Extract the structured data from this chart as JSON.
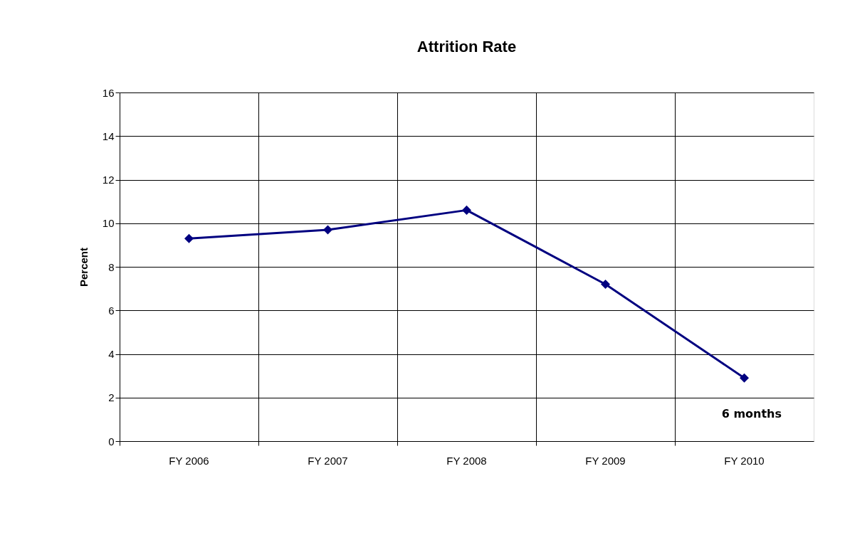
{
  "chart_data": {
    "type": "line",
    "title": "Attrition Rate",
    "ylabel": "Percent",
    "categories": [
      "FY 2006",
      "FY 2007",
      "FY 2008",
      "FY 2009",
      "FY 2010"
    ],
    "series": [
      {
        "color": "#000080",
        "values": [
          9.3,
          9.7,
          10.6,
          7.2,
          2.9
        ]
      }
    ],
    "ylim": [
      0,
      16
    ],
    "yticks": [
      0,
      2,
      4,
      6,
      8,
      10,
      12,
      14,
      16
    ],
    "grid": true,
    "marker": "diamond",
    "line_style": "solid",
    "annotations": [
      "6 months"
    ]
  }
}
